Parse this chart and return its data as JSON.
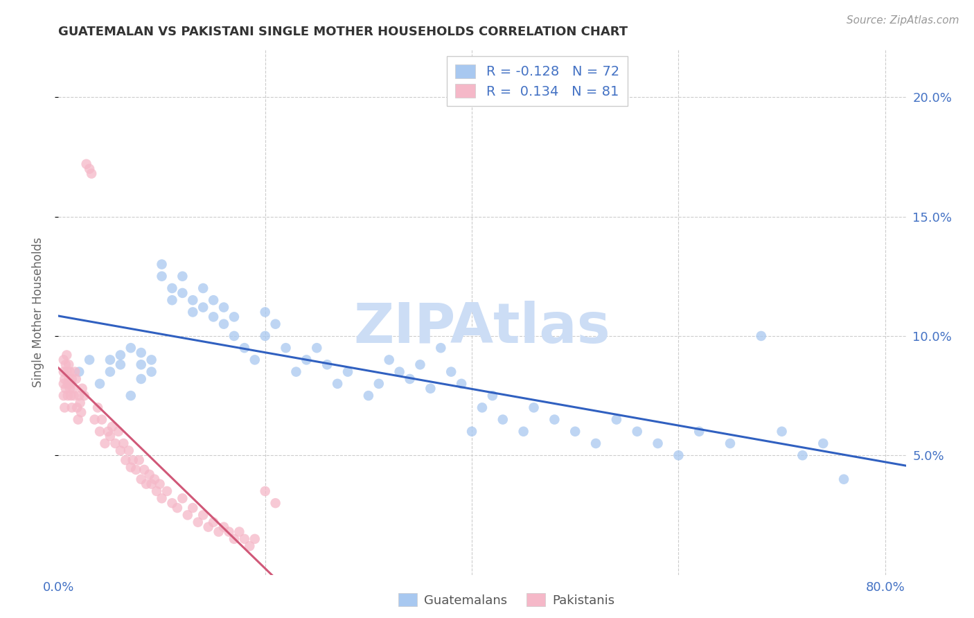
{
  "title": "GUATEMALAN VS PAKISTANI SINGLE MOTHER HOUSEHOLDS CORRELATION CHART",
  "source": "Source: ZipAtlas.com",
  "ylabel": "Single Mother Households",
  "ylim": [
    0.0,
    0.22
  ],
  "xlim": [
    0.0,
    0.82
  ],
  "ytick_vals": [
    0.05,
    0.1,
    0.15,
    0.2
  ],
  "ytick_labels": [
    "5.0%",
    "10.0%",
    "15.0%",
    "20.0%"
  ],
  "xtick_vals": [
    0.0,
    0.2,
    0.4,
    0.6,
    0.8
  ],
  "xtick_labels": [
    "0.0%",
    "",
    "",
    "",
    "80.0%"
  ],
  "blue_R": "-0.128",
  "blue_N": "72",
  "pink_R": "0.134",
  "pink_N": "81",
  "blue_color": "#a8c8f0",
  "pink_color": "#f5b8c8",
  "blue_line_color": "#3060c0",
  "pink_line_color": "#d05878",
  "axis_label_color": "#4472c4",
  "text_color": "#333333",
  "grid_color": "#cccccc",
  "watermark": "ZIPAtlas",
  "watermark_color": "#ccddf5",
  "legend_text_color": "#4472c4",
  "blue_scatter_x": [
    0.02,
    0.03,
    0.04,
    0.05,
    0.05,
    0.06,
    0.06,
    0.07,
    0.07,
    0.08,
    0.08,
    0.08,
    0.09,
    0.09,
    0.1,
    0.1,
    0.11,
    0.11,
    0.12,
    0.12,
    0.13,
    0.13,
    0.14,
    0.14,
    0.15,
    0.15,
    0.16,
    0.16,
    0.17,
    0.17,
    0.18,
    0.19,
    0.2,
    0.2,
    0.21,
    0.22,
    0.23,
    0.24,
    0.25,
    0.26,
    0.27,
    0.28,
    0.3,
    0.31,
    0.32,
    0.33,
    0.34,
    0.35,
    0.36,
    0.37,
    0.38,
    0.39,
    0.4,
    0.41,
    0.42,
    0.43,
    0.45,
    0.46,
    0.48,
    0.5,
    0.52,
    0.54,
    0.56,
    0.58,
    0.6,
    0.62,
    0.65,
    0.68,
    0.7,
    0.72,
    0.74,
    0.76
  ],
  "blue_scatter_y": [
    0.085,
    0.09,
    0.08,
    0.09,
    0.085,
    0.092,
    0.088,
    0.075,
    0.095,
    0.088,
    0.082,
    0.093,
    0.085,
    0.09,
    0.13,
    0.125,
    0.12,
    0.115,
    0.125,
    0.118,
    0.11,
    0.115,
    0.12,
    0.112,
    0.115,
    0.108,
    0.105,
    0.112,
    0.108,
    0.1,
    0.095,
    0.09,
    0.11,
    0.1,
    0.105,
    0.095,
    0.085,
    0.09,
    0.095,
    0.088,
    0.08,
    0.085,
    0.075,
    0.08,
    0.09,
    0.085,
    0.082,
    0.088,
    0.078,
    0.095,
    0.085,
    0.08,
    0.06,
    0.07,
    0.075,
    0.065,
    0.06,
    0.07,
    0.065,
    0.06,
    0.055,
    0.065,
    0.06,
    0.055,
    0.05,
    0.06,
    0.055,
    0.1,
    0.06,
    0.05,
    0.055,
    0.04
  ],
  "pink_scatter_x": [
    0.005,
    0.005,
    0.005,
    0.005,
    0.006,
    0.006,
    0.007,
    0.007,
    0.008,
    0.008,
    0.009,
    0.009,
    0.01,
    0.01,
    0.011,
    0.011,
    0.012,
    0.012,
    0.013,
    0.013,
    0.014,
    0.015,
    0.016,
    0.017,
    0.018,
    0.019,
    0.02,
    0.021,
    0.022,
    0.023,
    0.025,
    0.027,
    0.03,
    0.032,
    0.035,
    0.038,
    0.04,
    0.042,
    0.045,
    0.048,
    0.05,
    0.052,
    0.055,
    0.058,
    0.06,
    0.063,
    0.065,
    0.068,
    0.07,
    0.072,
    0.075,
    0.078,
    0.08,
    0.083,
    0.085,
    0.088,
    0.09,
    0.093,
    0.095,
    0.098,
    0.1,
    0.105,
    0.11,
    0.115,
    0.12,
    0.125,
    0.13,
    0.135,
    0.14,
    0.145,
    0.15,
    0.155,
    0.16,
    0.165,
    0.17,
    0.175,
    0.18,
    0.185,
    0.19,
    0.2,
    0.21
  ],
  "pink_scatter_y": [
    0.08,
    0.085,
    0.09,
    0.075,
    0.07,
    0.082,
    0.088,
    0.078,
    0.085,
    0.092,
    0.08,
    0.075,
    0.088,
    0.082,
    0.078,
    0.085,
    0.08,
    0.075,
    0.07,
    0.082,
    0.078,
    0.075,
    0.085,
    0.082,
    0.07,
    0.065,
    0.075,
    0.072,
    0.068,
    0.078,
    0.075,
    0.172,
    0.17,
    0.168,
    0.065,
    0.07,
    0.06,
    0.065,
    0.055,
    0.06,
    0.058,
    0.062,
    0.055,
    0.06,
    0.052,
    0.055,
    0.048,
    0.052,
    0.045,
    0.048,
    0.044,
    0.048,
    0.04,
    0.044,
    0.038,
    0.042,
    0.038,
    0.04,
    0.035,
    0.038,
    0.032,
    0.035,
    0.03,
    0.028,
    0.032,
    0.025,
    0.028,
    0.022,
    0.025,
    0.02,
    0.022,
    0.018,
    0.02,
    0.018,
    0.015,
    0.018,
    0.015,
    0.012,
    0.015,
    0.035,
    0.03
  ]
}
